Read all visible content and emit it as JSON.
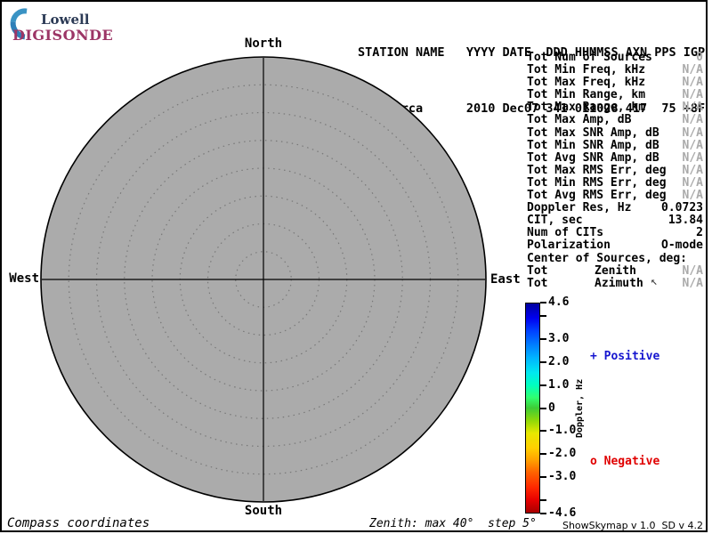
{
  "logo": {
    "line1": "Lowell",
    "line2": "DIGISONDE"
  },
  "header": {
    "line1": "STATION NAME   YYYY DATE  DDD HHMMSS AXN PPS IGP",
    "line2": "Jicamarca      2010 Dec07 341 011028 417  75 +8F",
    "station": "Jicamarca",
    "year": "2010",
    "date": "Dec07",
    "ddd": "341",
    "hhmmss": "011028",
    "axn": "417",
    "pps": "75",
    "igp": "+8F"
  },
  "compass": {
    "north": "North",
    "south": "South",
    "west": "West",
    "east": "East"
  },
  "skymap": {
    "coordinates": "Compass",
    "zenith_max_deg": 40,
    "step_deg": 5,
    "rings": 8,
    "fill_color": "#ABABAB",
    "ring_color": "#787878"
  },
  "stats": {
    "rows": [
      {
        "label": "Tot Num of Sources",
        "value": "0",
        "muted": true
      },
      {
        "label": "Tot Min Freq, kHz",
        "value": "N/A",
        "muted": true
      },
      {
        "label": "Tot Max Freq, kHz",
        "value": "N/A",
        "muted": true
      },
      {
        "label": "Tot Min Range, km",
        "value": "N/A",
        "muted": true
      },
      {
        "label": "Tot Max Range, km",
        "value": "N/A",
        "muted": true
      },
      {
        "label": "Tot Max Amp, dB",
        "value": "N/A",
        "muted": true
      },
      {
        "label": "Tot Max SNR Amp, dB",
        "value": "N/A",
        "muted": true
      },
      {
        "label": "Tot Min SNR Amp, dB",
        "value": "N/A",
        "muted": true
      },
      {
        "label": "Tot Avg SNR Amp, dB",
        "value": "N/A",
        "muted": true
      },
      {
        "label": "Tot Max RMS Err, deg",
        "value": "N/A",
        "muted": true
      },
      {
        "label": "Tot Min RMS Err, deg",
        "value": "N/A",
        "muted": true
      },
      {
        "label": "Tot Avg RMS Err, deg",
        "value": "N/A",
        "muted": true
      },
      {
        "label": "Doppler Res, Hz",
        "value": "0.0723",
        "muted": false
      },
      {
        "label": "CIT, sec",
        "value": "13.84",
        "muted": false
      },
      {
        "label": "Num of CITs",
        "value": "2",
        "muted": false
      },
      {
        "label": "Polarization",
        "value": "O-mode",
        "muted": false
      },
      {
        "label": "Center of Sources, deg:",
        "value": "",
        "muted": false
      },
      {
        "label": "Tot",
        "mid": "Zenith",
        "value": "N/A",
        "muted": true
      },
      {
        "label": "Tot",
        "mid": "Azimuth",
        "value": "N/A",
        "muted": true
      }
    ]
  },
  "colorbar": {
    "title": "Doppler, Hz",
    "max": 4.6,
    "min": -4.6,
    "ticks": [
      {
        "v": 4.6,
        "label": "4.6"
      },
      {
        "v": 4.0,
        "label": ""
      },
      {
        "v": 3.0,
        "label": "3.0"
      },
      {
        "v": 2.0,
        "label": "2.0"
      },
      {
        "v": 1.0,
        "label": "1.0"
      },
      {
        "v": 0.0,
        "label": "0"
      },
      {
        "v": -1.0,
        "label": "-1.0"
      },
      {
        "v": -2.0,
        "label": "-2.0"
      },
      {
        "v": -3.0,
        "label": "-3.0"
      },
      {
        "v": -4.0,
        "label": ""
      },
      {
        "v": -4.6,
        "label": "-4.6"
      }
    ],
    "positive_marker": "+",
    "positive_label": "Positive",
    "positive_color": "#1515cf",
    "negative_marker": "o",
    "negative_label": "Negative",
    "negative_color": "#e00000"
  },
  "footer": {
    "left": "Compass coordinates",
    "center": "Zenith: max 40°  step 5°",
    "right": "ShowSkymap v 1.0  SD v 4.2"
  },
  "cursor_glyph": "↖"
}
